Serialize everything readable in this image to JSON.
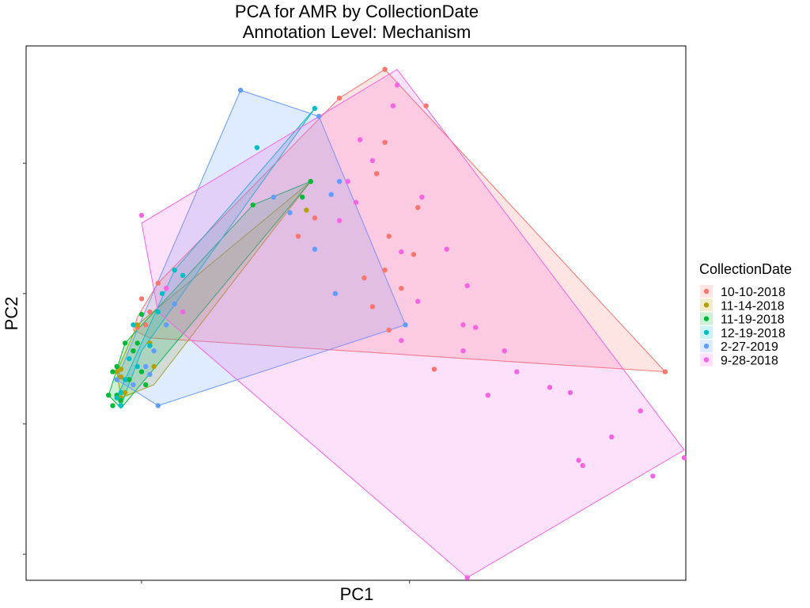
{
  "chart_data": {
    "type": "scatter",
    "title": "PCA for AMR by CollectionDate",
    "subtitle": "Annotation Level: Mechanism",
    "xlabel": "PC1",
    "ylabel": "PC2",
    "xlim": [
      -0.28,
      1.32
    ],
    "ylim": [
      -1.1,
      0.95
    ],
    "grid": false,
    "hull_polygons": true,
    "legend_title": "CollectionDate",
    "legend_position": "right",
    "series": [
      {
        "name": "10-10-2018",
        "color": "#F8766D",
        "points": [
          [
            0.59,
            0.86
          ],
          [
            0.48,
            0.75
          ],
          [
            0.69,
            0.72
          ],
          [
            0.59,
            0.58
          ],
          [
            0.57,
            0.46
          ],
          [
            0.67,
            0.33
          ],
          [
            0.42,
            0.29
          ],
          [
            0.38,
            0.22
          ],
          [
            0.6,
            0.22
          ],
          [
            0.66,
            0.15
          ],
          [
            0.59,
            0.09
          ],
          [
            0.63,
            0.02
          ],
          [
            0.54,
            0.06
          ],
          [
            0.04,
            0.04
          ],
          [
            0.02,
            -0.07
          ],
          [
            0.56,
            -0.05
          ],
          [
            0.6,
            -0.14
          ],
          [
            0.71,
            -0.29
          ],
          [
            1.27,
            -0.3
          ],
          [
            0.01,
            -0.12
          ],
          [
            -0.01,
            -0.13
          ],
          [
            0.0,
            -0.02
          ]
        ],
        "hull": [
          [
            0.59,
            0.86
          ],
          [
            1.27,
            -0.3
          ],
          [
            0.02,
            -0.17
          ],
          [
            -0.02,
            -0.14
          ],
          [
            -0.01,
            -0.09
          ],
          [
            0.04,
            0.04
          ],
          [
            0.48,
            0.75
          ]
        ]
      },
      {
        "name": "11-14-2018",
        "color": "#B79F00",
        "points": [
          [
            0.41,
            0.43
          ],
          [
            0.4,
            0.32
          ],
          [
            -0.05,
            -0.29
          ],
          [
            -0.06,
            -0.3
          ],
          [
            -0.05,
            -0.32
          ],
          [
            -0.04,
            -0.38
          ],
          [
            -0.05,
            -0.4
          ],
          [
            -0.03,
            -0.33
          ],
          [
            -0.02,
            -0.22
          ],
          [
            -0.01,
            -0.12
          ],
          [
            0.02,
            -0.19
          ],
          [
            0.03,
            -0.28
          ]
        ],
        "hull": [
          [
            0.41,
            0.43
          ],
          [
            0.03,
            -0.35
          ],
          [
            -0.05,
            -0.4
          ],
          [
            -0.06,
            -0.3
          ],
          [
            -0.01,
            -0.12
          ]
        ]
      },
      {
        "name": "11-19-2018",
        "color": "#00BA38",
        "points": [
          [
            0.39,
            0.37
          ],
          [
            0.41,
            0.43
          ],
          [
            0.27,
            0.34
          ],
          [
            -0.04,
            -0.19
          ],
          [
            -0.06,
            -0.28
          ],
          [
            -0.07,
            -0.3
          ],
          [
            -0.06,
            -0.39
          ],
          [
            -0.05,
            -0.41
          ],
          [
            -0.08,
            -0.39
          ],
          [
            -0.07,
            -0.43
          ],
          [
            -0.03,
            -0.33
          ],
          [
            -0.02,
            -0.22
          ],
          [
            0.0,
            -0.08
          ],
          [
            -0.01,
            -0.19
          ],
          [
            0.0,
            -0.3
          ],
          [
            0.01,
            -0.35
          ]
        ],
        "hull": [
          [
            0.27,
            0.34
          ],
          [
            0.41,
            0.43
          ],
          [
            -0.05,
            -0.44
          ],
          [
            -0.08,
            -0.39
          ],
          [
            -0.04,
            -0.19
          ]
        ]
      },
      {
        "name": "12-19-2018",
        "color": "#00BFC4",
        "points": [
          [
            0.42,
            0.71
          ],
          [
            0.28,
            0.56
          ],
          [
            0.1,
            0.07
          ],
          [
            0.04,
            -0.07
          ],
          [
            0.02,
            -0.2
          ],
          [
            -0.01,
            -0.28
          ],
          [
            -0.04,
            -0.33
          ],
          [
            -0.05,
            -0.38
          ],
          [
            -0.03,
            -0.25
          ],
          [
            -0.02,
            -0.12
          ],
          [
            0.05,
            0.0
          ],
          [
            0.08,
            0.09
          ],
          [
            -0.05,
            -0.43
          ],
          [
            -0.06,
            -0.4
          ]
        ],
        "hull": [
          [
            0.42,
            0.71
          ],
          [
            0.08,
            0.09
          ],
          [
            -0.06,
            -0.4
          ],
          [
            -0.05,
            -0.43
          ],
          [
            0.0,
            -0.22
          ]
        ]
      },
      {
        "name": "2-27-2019",
        "color": "#619CFF",
        "points": [
          [
            0.24,
            0.78
          ],
          [
            0.43,
            0.68
          ],
          [
            0.48,
            0.43
          ],
          [
            0.46,
            0.38
          ],
          [
            0.32,
            0.37
          ],
          [
            0.36,
            0.31
          ],
          [
            0.42,
            0.17
          ],
          [
            0.47,
            0.0
          ],
          [
            0.08,
            -0.04
          ],
          [
            0.06,
            -0.12
          ],
          [
            0.03,
            -0.22
          ],
          [
            0.64,
            -0.12
          ],
          [
            0.02,
            -0.31
          ],
          [
            -0.02,
            -0.35
          ],
          [
            0.04,
            -0.43
          ],
          [
            -0.06,
            -0.33
          ],
          [
            0.01,
            -0.28
          ]
        ],
        "hull": [
          [
            0.24,
            0.78
          ],
          [
            0.43,
            0.68
          ],
          [
            0.64,
            -0.12
          ],
          [
            0.04,
            -0.43
          ],
          [
            -0.06,
            -0.33
          ],
          [
            0.0,
            -0.1
          ]
        ]
      },
      {
        "name": "9-28-2018",
        "color": "#F564E3",
        "points": [
          [
            0.62,
            0.8
          ],
          [
            0.61,
            0.72
          ],
          [
            0.53,
            0.59
          ],
          [
            0.56,
            0.51
          ],
          [
            0.5,
            0.43
          ],
          [
            0.68,
            0.37
          ],
          [
            0.52,
            0.35
          ],
          [
            0.48,
            0.28
          ],
          [
            0.63,
            0.16
          ],
          [
            0.74,
            0.17
          ],
          [
            0.79,
            0.03
          ],
          [
            0.67,
            -0.03
          ],
          [
            0.78,
            -0.12
          ],
          [
            0.81,
            -0.13
          ],
          [
            0.63,
            -0.18
          ],
          [
            0.78,
            -0.22
          ],
          [
            0.88,
            -0.22
          ],
          [
            0.91,
            -0.3
          ],
          [
            0.84,
            -0.39
          ],
          [
            0.99,
            -0.36
          ],
          [
            1.04,
            -0.38
          ],
          [
            1.14,
            -0.55
          ],
          [
            1.21,
            -0.45
          ],
          [
            1.35,
            -0.63
          ],
          [
            1.24,
            -0.7
          ],
          [
            1.07,
            -0.66
          ],
          [
            1.06,
            -0.64
          ],
          [
            0.79,
            -1.09
          ],
          [
            0.1,
            -0.07
          ],
          [
            0.06,
            0.02
          ],
          [
            0.0,
            0.3
          ]
        ],
        "hull": [
          [
            0.62,
            0.86
          ],
          [
            1.35,
            -0.6
          ],
          [
            0.79,
            -1.09
          ],
          [
            0.04,
            -0.07
          ],
          [
            0.0,
            0.27
          ]
        ]
      }
    ]
  }
}
